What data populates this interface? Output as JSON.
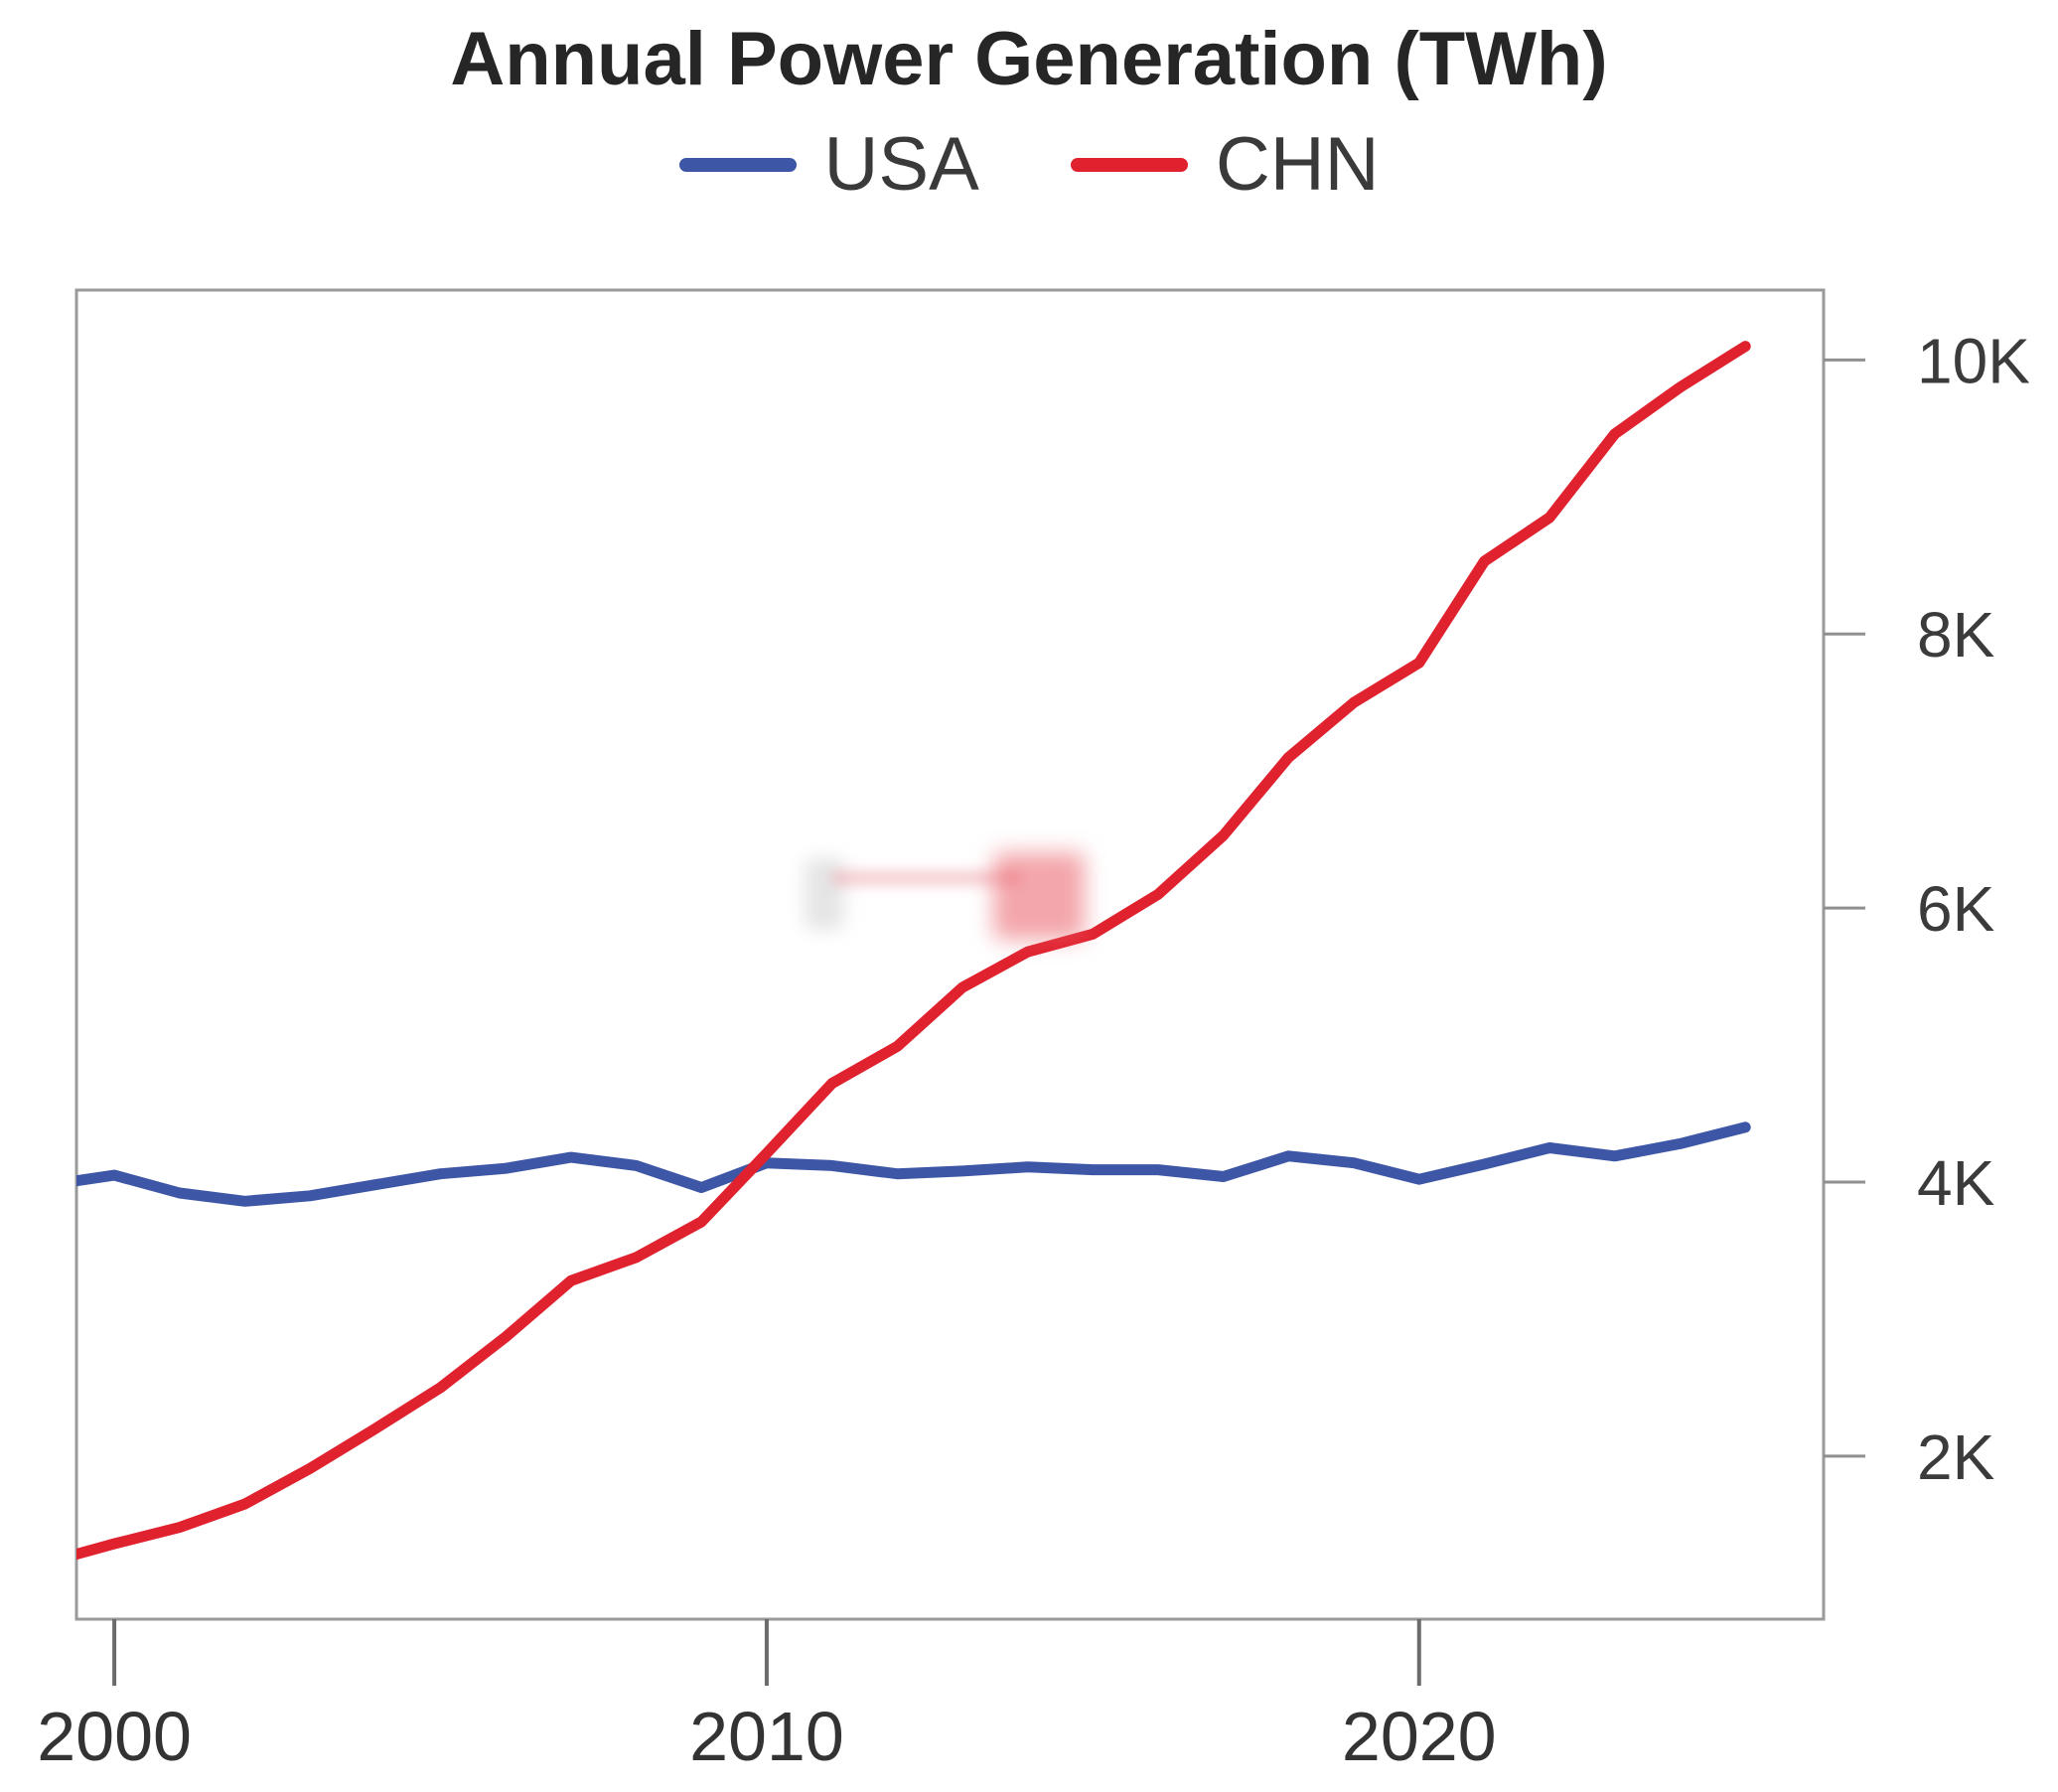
{
  "title": "Annual Power Generation (TWh)",
  "legend": [
    {
      "label": "USA",
      "color": "#3d56a6"
    },
    {
      "label": "CHN",
      "color": "#e0222f"
    }
  ],
  "chart_data": {
    "type": "line",
    "title": "Annual Power Generation (TWh)",
    "xlabel": "",
    "ylabel": "",
    "legend_position": "top",
    "grid": false,
    "y_axis_side": "right",
    "x": [
      1999,
      2000,
      2001,
      2002,
      2003,
      2004,
      2005,
      2006,
      2007,
      2008,
      2009,
      2010,
      2011,
      2012,
      2013,
      2014,
      2015,
      2016,
      2017,
      2018,
      2019,
      2020,
      2021,
      2022,
      2023,
      2024,
      2025
    ],
    "series": [
      {
        "name": "USA",
        "color": "#3d56a6",
        "values": [
          3980,
          4050,
          3920,
          3860,
          3900,
          3980,
          4060,
          4100,
          4180,
          4120,
          3960,
          4140,
          4120,
          4060,
          4080,
          4110,
          4090,
          4090,
          4040,
          4190,
          4140,
          4020,
          4130,
          4250,
          4190,
          4280,
          4400
        ]
      },
      {
        "name": "CHN",
        "color": "#e0222f",
        "values": [
          1230,
          1360,
          1480,
          1650,
          1910,
          2200,
          2500,
          2870,
          3280,
          3450,
          3710,
          4210,
          4720,
          4990,
          5420,
          5680,
          5810,
          6100,
          6530,
          7100,
          7500,
          7790,
          8530,
          8850,
          9460,
          9800,
          10100
        ]
      }
    ],
    "x_ticks": [
      {
        "value": 2000,
        "label": "2000"
      },
      {
        "value": 2010,
        "label": "2010"
      },
      {
        "value": 2020,
        "label": "2020"
      }
    ],
    "y_ticks": [
      {
        "value": 2000,
        "label": "2K"
      },
      {
        "value": 4000,
        "label": "4K"
      },
      {
        "value": 6000,
        "label": "6K"
      },
      {
        "value": 8000,
        "label": "8K"
      },
      {
        "value": 10000,
        "label": "10K"
      }
    ],
    "x_range": [
      1999.42,
      2026.2
    ],
    "y_range": [
      810,
      10510
    ]
  }
}
